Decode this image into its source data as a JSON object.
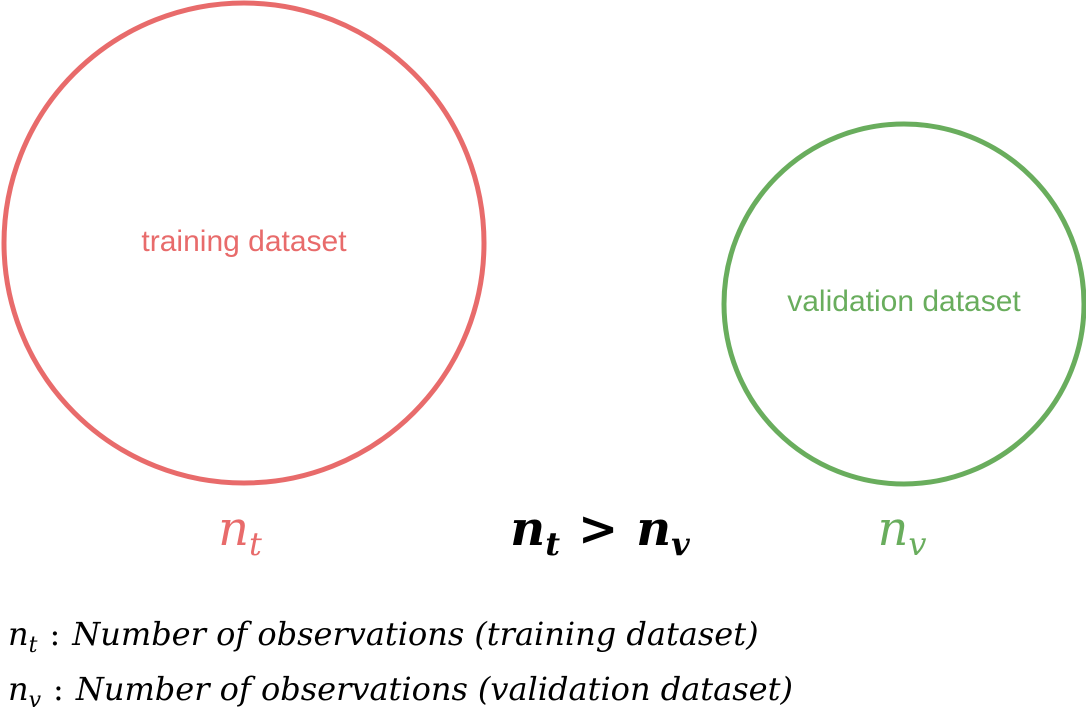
{
  "nodes": [
    {
      "label": "training dataset",
      "color": "#e86b6b",
      "symbol": {
        "base": "n",
        "sub": "t"
      }
    },
    {
      "label": "validation dataset",
      "color": "#69ad5d",
      "symbol": {
        "base": "n",
        "sub": "v"
      }
    }
  ],
  "relation": {
    "left": {
      "base": "n",
      "sub": "t"
    },
    "operator": ">",
    "right": {
      "base": "n",
      "sub": "v"
    }
  },
  "legend": [
    {
      "symbol": {
        "base": "n",
        "sub": "t"
      },
      "separator": ":",
      "text": "Number of observations",
      "detail": "(training dataset)"
    },
    {
      "symbol": {
        "base": "n",
        "sub": "v"
      },
      "separator": ":",
      "text": "Number of observations",
      "detail": "(validation dataset)"
    }
  ]
}
